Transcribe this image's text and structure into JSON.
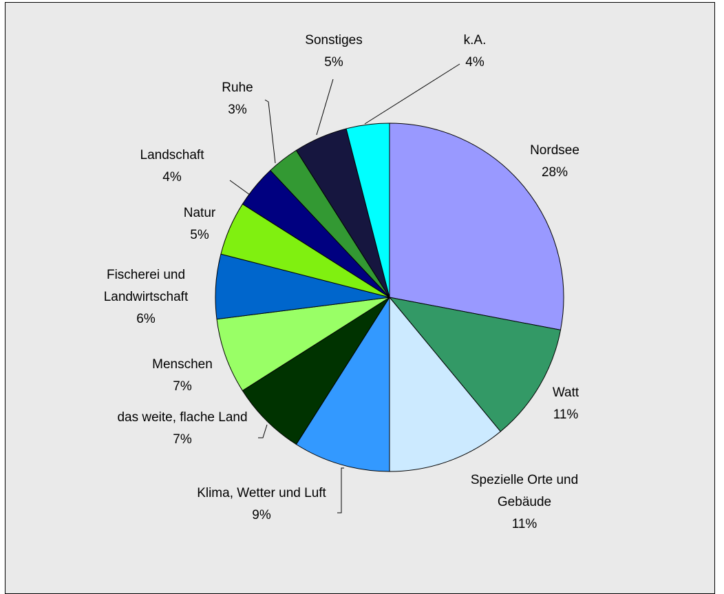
{
  "chart_data": {
    "type": "pie",
    "categories": [
      "Nordsee",
      "Watt",
      "Spezielle Orte und Gebäude",
      "Klima, Wetter und Luft",
      "das weite, flache Land",
      "Menschen",
      "Fischerei und Landwirtschaft",
      "Natur",
      "Landschaft",
      "Ruhe",
      "Sonstiges",
      "k.A."
    ],
    "values": [
      28,
      11,
      11,
      9,
      7,
      7,
      6,
      5,
      4,
      3,
      5,
      4
    ],
    "value_labels": [
      "28%",
      "11%",
      "11%",
      "9%",
      "7%",
      "7%",
      "6%",
      "5%",
      "4%",
      "3%",
      "5%",
      "4%"
    ],
    "colors": [
      "#9999ff",
      "#339966",
      "#cceaff",
      "#3399ff",
      "#003300",
      "#99ff66",
      "#0066cc",
      "#80f010",
      "#000080",
      "#339933",
      "#16163f",
      "#00ffff"
    ]
  }
}
